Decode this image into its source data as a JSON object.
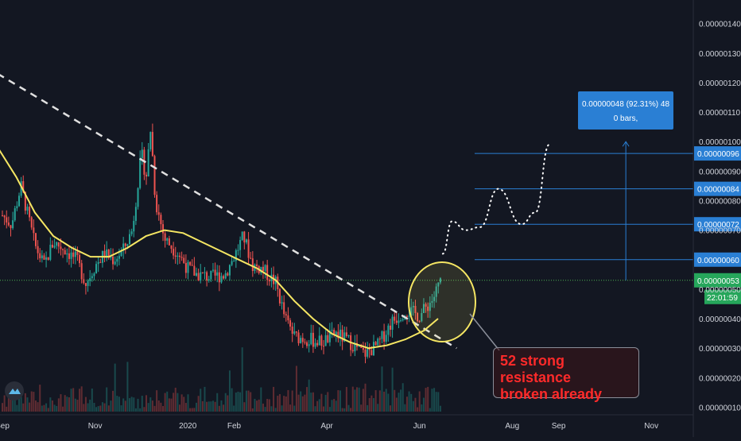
{
  "chart_data": {
    "type": "candlestick",
    "price_axis": {
      "ticks": [
        "0.00000140",
        "0.00000130",
        "0.00000120",
        "0.00000110",
        "0.00000100",
        "0.00000090",
        "0.00000080",
        "0.00000070",
        "0.00000050",
        "0.00000040",
        "0.00000030",
        "0.00000020",
        "0.00000010"
      ],
      "tick_values": [
        1.4,
        1.3,
        1.2,
        1.1,
        1.0,
        0.9,
        0.8,
        0.7,
        0.5,
        0.4,
        0.3,
        0.2,
        0.1
      ],
      "ylim": [
        0.085,
        1.48
      ]
    },
    "time_axis": {
      "labels": [
        "Sep",
        "Nov",
        "2020",
        "Feb",
        "Apr",
        "Jun",
        "Aug",
        "Sep",
        "Nov"
      ],
      "positions": [
        0,
        2,
        4,
        5,
        7,
        9,
        11,
        12,
        14
      ]
    },
    "levels": [
      {
        "label": "0.00000096",
        "value": 0.96
      },
      {
        "label": "0.00000084",
        "value": 0.84
      },
      {
        "label": "0.00000072",
        "value": 0.72
      },
      {
        "label": "0.00000060",
        "value": 0.6
      },
      {
        "label": "0.00000053",
        "value": 0.53
      }
    ],
    "current_price_label": "0.00000053",
    "countdown": "22:01:59",
    "measure": {
      "line1": "0.00000048 (92.31%) 48",
      "line2": "0 bars,"
    },
    "annotation": [
      "52 strong resistance",
      "broken already"
    ],
    "price_path": [
      [
        0,
        0.75
      ],
      [
        0.2,
        0.72
      ],
      [
        0.4,
        0.85
      ],
      [
        0.7,
        0.65
      ],
      [
        0.9,
        0.58
      ],
      [
        1.1,
        0.66
      ],
      [
        1.3,
        0.64
      ],
      [
        1.6,
        0.6
      ],
      [
        1.8,
        0.52
      ],
      [
        2.0,
        0.58
      ],
      [
        2.2,
        0.62
      ],
      [
        2.4,
        0.6
      ],
      [
        2.6,
        0.63
      ],
      [
        2.8,
        0.7
      ],
      [
        3.0,
        0.96
      ],
      [
        3.1,
        0.88
      ],
      [
        3.2,
        1.05
      ],
      [
        3.3,
        0.8
      ],
      [
        3.5,
        0.67
      ],
      [
        3.8,
        0.62
      ],
      [
        4.0,
        0.57
      ],
      [
        4.2,
        0.55
      ],
      [
        4.5,
        0.54
      ],
      [
        4.8,
        0.55
      ],
      [
        5.0,
        0.61
      ],
      [
        5.2,
        0.68
      ],
      [
        5.4,
        0.58
      ],
      [
        5.6,
        0.57
      ],
      [
        5.9,
        0.52
      ],
      [
        6.1,
        0.4
      ],
      [
        6.3,
        0.34
      ],
      [
        6.6,
        0.33
      ],
      [
        6.9,
        0.32
      ],
      [
        7.2,
        0.35
      ],
      [
        7.5,
        0.32
      ],
      [
        7.8,
        0.28
      ],
      [
        8.1,
        0.31
      ],
      [
        8.4,
        0.39
      ],
      [
        8.7,
        0.43
      ],
      [
        9.0,
        0.41
      ],
      [
        9.3,
        0.47
      ],
      [
        9.45,
        0.53
      ]
    ],
    "ma_path": [
      [
        -0.1,
        0.98
      ],
      [
        0.3,
        0.88
      ],
      [
        0.7,
        0.76
      ],
      [
        1.1,
        0.68
      ],
      [
        1.5,
        0.64
      ],
      [
        1.9,
        0.61
      ],
      [
        2.3,
        0.61
      ],
      [
        2.7,
        0.64
      ],
      [
        3.1,
        0.68
      ],
      [
        3.5,
        0.7
      ],
      [
        3.9,
        0.69
      ],
      [
        4.3,
        0.66
      ],
      [
        4.7,
        0.63
      ],
      [
        5.1,
        0.6
      ],
      [
        5.5,
        0.57
      ],
      [
        5.9,
        0.53
      ],
      [
        6.3,
        0.46
      ],
      [
        6.7,
        0.4
      ],
      [
        7.1,
        0.35
      ],
      [
        7.5,
        0.32
      ],
      [
        7.9,
        0.3
      ],
      [
        8.3,
        0.31
      ],
      [
        8.7,
        0.33
      ],
      [
        9.1,
        0.36
      ],
      [
        9.4,
        0.4
      ]
    ],
    "trendline": [
      [
        -0.1,
        1.23
      ],
      [
        9.8,
        0.3
      ]
    ],
    "projection": [
      [
        9.5,
        0.62
      ],
      [
        9.7,
        0.73
      ],
      [
        10.0,
        0.7
      ],
      [
        10.3,
        0.71
      ],
      [
        10.7,
        0.84
      ],
      [
        11.2,
        0.72
      ],
      [
        11.5,
        0.76
      ],
      [
        11.8,
        0.99
      ]
    ]
  }
}
